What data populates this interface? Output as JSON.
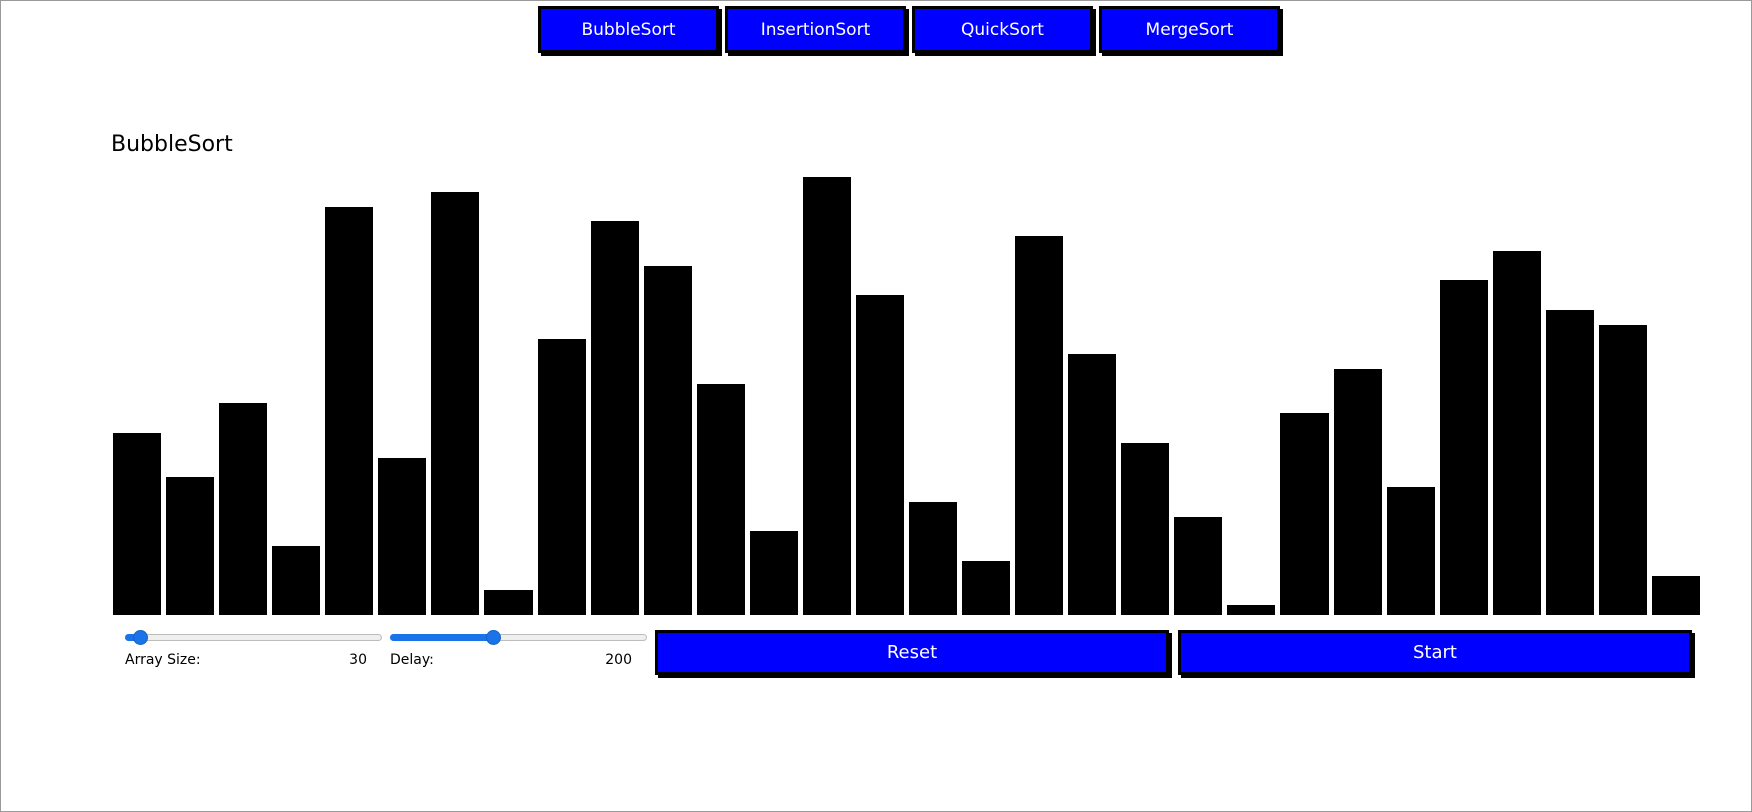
{
  "nav": {
    "buttons": [
      "BubbleSort",
      "InsertionSort",
      "QuickSort",
      "MergeSort"
    ]
  },
  "visualizer": {
    "title": "BubbleSort",
    "bar_color": "#000000",
    "values": [
      37,
      28,
      43,
      14,
      83,
      32,
      86,
      5,
      56,
      80,
      71,
      47,
      17,
      89,
      65,
      23,
      11,
      77,
      53,
      35,
      20,
      2,
      41,
      50,
      26,
      68,
      74,
      62,
      59,
      8
    ]
  },
  "controls": {
    "array_size": {
      "label": "Array Size:",
      "value": "30",
      "fraction": 0.06
    },
    "delay": {
      "label": "Delay:",
      "value": "200",
      "fraction": 0.4
    },
    "reset_label": "Reset",
    "start_label": "Start"
  },
  "colors": {
    "accent": "#0000ff",
    "slider": "#1a73e8"
  }
}
